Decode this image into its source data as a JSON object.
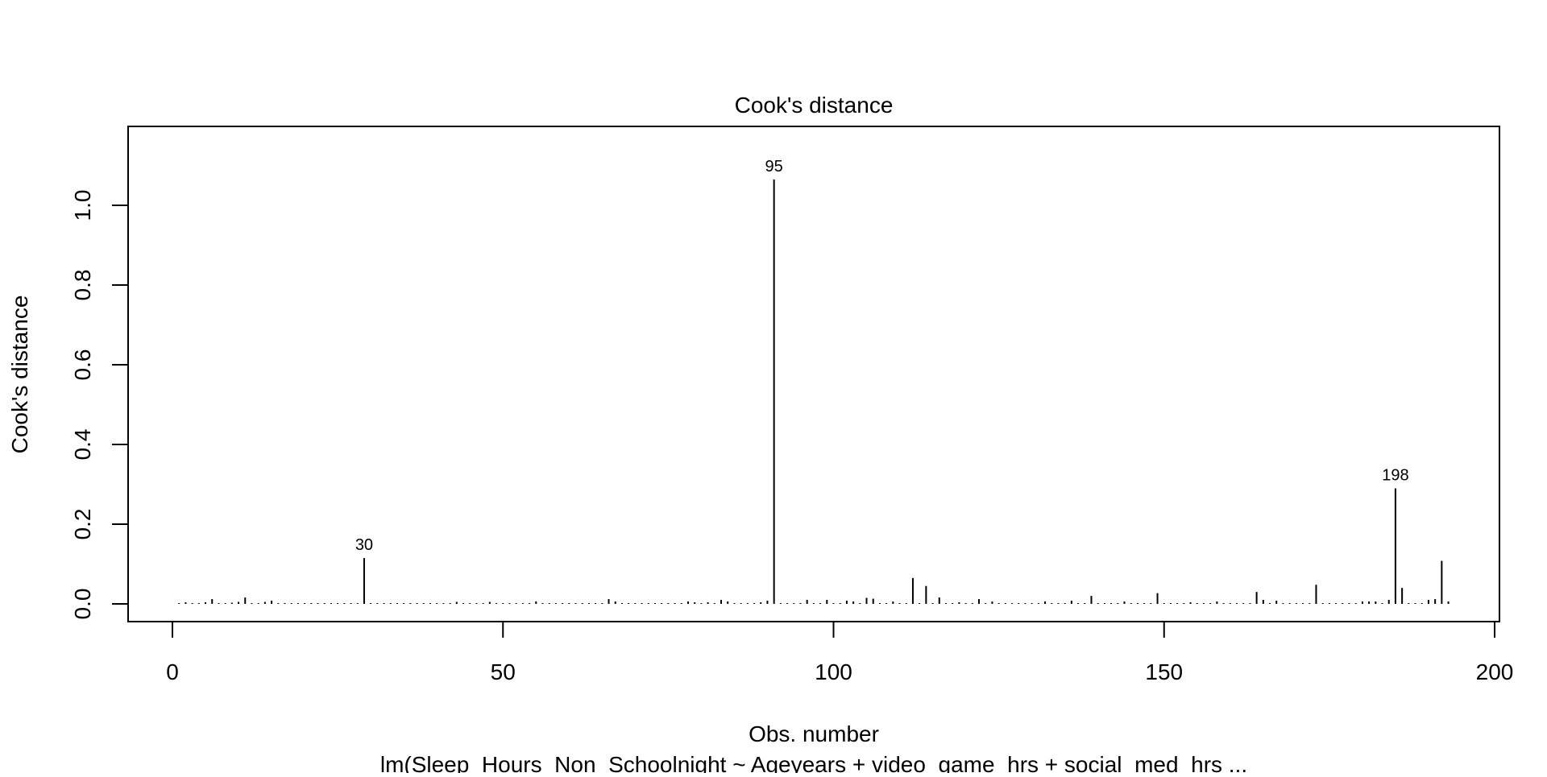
{
  "chart_data": {
    "type": "bar",
    "title": "Cook's distance",
    "xlabel": "Obs. number",
    "ylabel": "Cook's distance",
    "subtitle": "lm(Sleep_Hours_Non_Schoolnight ~ Ageyears + video_game_hrs + social_med_hrs ...",
    "xlim": [
      0,
      200
    ],
    "ylim": [
      0,
      1.15
    ],
    "xticks": [
      0,
      50,
      100,
      150,
      200
    ],
    "yticks": [
      0.0,
      0.2,
      0.4,
      0.6,
      0.8,
      1.0
    ],
    "ytick_labels": [
      "0.0",
      "0.2",
      "0.4",
      "0.6",
      "0.8",
      "1.0"
    ],
    "grid": false,
    "values": [
      0.002,
      0.004,
      0.002,
      0.002,
      0.004,
      0.012,
      0.002,
      0.002,
      0.003,
      0.005,
      0.016,
      0.002,
      0.002,
      0.005,
      0.008,
      0.002,
      0.002,
      0.002,
      0.002,
      0.002,
      0.002,
      0.002,
      0.002,
      0.002,
      0.002,
      0.002,
      0.002,
      0.002,
      0.115,
      0.002,
      0.002,
      0.002,
      0.002,
      0.002,
      0.002,
      0.002,
      0.002,
      0.002,
      0.002,
      0.002,
      0.002,
      0.002,
      0.005,
      0.002,
      0.002,
      0.002,
      0.002,
      0.005,
      0.002,
      0.002,
      0.002,
      0.002,
      0.002,
      0.002,
      0.006,
      0.002,
      0.002,
      0.002,
      0.002,
      0.002,
      0.002,
      0.002,
      0.002,
      0.002,
      0.002,
      0.012,
      0.006,
      0.002,
      0.002,
      0.002,
      0.002,
      0.002,
      0.002,
      0.002,
      0.002,
      0.002,
      0.002,
      0.006,
      0.004,
      0.002,
      0.004,
      0.002,
      0.01,
      0.006,
      0.002,
      0.002,
      0.002,
      0.002,
      0.004,
      0.008,
      1.065,
      0.002,
      0.002,
      0.002,
      0.002,
      0.01,
      0.002,
      0.002,
      0.01,
      0.002,
      0.002,
      0.008,
      0.006,
      0.002,
      0.015,
      0.013,
      0.002,
      0.002,
      0.006,
      0.002,
      0.002,
      0.065,
      0.002,
      0.045,
      0.002,
      0.016,
      0.002,
      0.002,
      0.004,
      0.002,
      0.002,
      0.012,
      0.002,
      0.006,
      0.002,
      0.002,
      0.002,
      0.002,
      0.002,
      0.002,
      0.002,
      0.006,
      0.002,
      0.002,
      0.002,
      0.008,
      0.002,
      0.002,
      0.02,
      0.002,
      0.002,
      0.002,
      0.002,
      0.006,
      0.002,
      0.002,
      0.002,
      0.002,
      0.027,
      0.002,
      0.002,
      0.002,
      0.002,
      0.004,
      0.002,
      0.002,
      0.002,
      0.006,
      0.002,
      0.002,
      0.002,
      0.002,
      0.002,
      0.03,
      0.01,
      0.002,
      0.008,
      0.002,
      0.002,
      0.002,
      0.002,
      0.002,
      0.048,
      0.002,
      0.002,
      0.002,
      0.002,
      0.002,
      0.002,
      0.006,
      0.006,
      0.006,
      0.002,
      0.01,
      0.29,
      0.04,
      0.002,
      0.002,
      0.002,
      0.01,
      0.012,
      0.108,
      0.006
    ],
    "annotations": [
      {
        "index": 29,
        "label": "30"
      },
      {
        "index": 91,
        "label": "95"
      },
      {
        "index": 185,
        "label": "198"
      }
    ]
  }
}
